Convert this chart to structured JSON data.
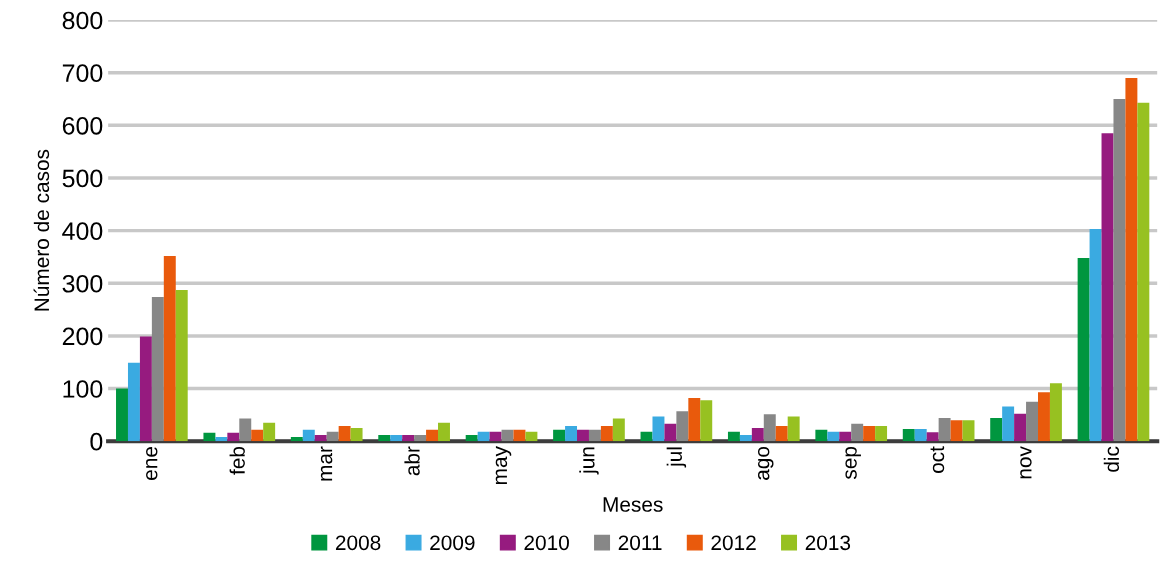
{
  "chart_data": {
    "type": "bar",
    "xlabel": "Meses",
    "ylabel": "Número de casos",
    "categories": [
      "ene",
      "feb",
      "mar",
      "abr",
      "may",
      "jun",
      "jul",
      "ago",
      "sep",
      "oct",
      "nov",
      "dic"
    ],
    "series": [
      {
        "name": "2008",
        "color": "#00963f",
        "values": [
          100,
          16,
          8,
          12,
          12,
          22,
          18,
          18,
          22,
          23,
          44,
          348
        ]
      },
      {
        "name": "2009",
        "color": "#3aaae1",
        "values": [
          149,
          8,
          22,
          12,
          18,
          29,
          47,
          12,
          18,
          23,
          66,
          403
        ]
      },
      {
        "name": "2010",
        "color": "#961b7f",
        "values": [
          199,
          16,
          12,
          12,
          18,
          22,
          33,
          25,
          18,
          17,
          52,
          585
        ]
      },
      {
        "name": "2011",
        "color": "#878787",
        "values": [
          274,
          43,
          18,
          12,
          22,
          22,
          57,
          51,
          33,
          44,
          75,
          650
        ]
      },
      {
        "name": "2012",
        "color": "#e95a0c",
        "values": [
          352,
          22,
          29,
          22,
          22,
          29,
          82,
          29,
          29,
          40,
          93,
          690
        ]
      },
      {
        "name": "2013",
        "color": "#97c121",
        "values": [
          287,
          35,
          25,
          35,
          18,
          43,
          78,
          47,
          29,
          40,
          110,
          643
        ]
      }
    ],
    "ylim": [
      0,
      800
    ],
    "yticks": [
      0,
      100,
      200,
      300,
      400,
      500,
      600,
      700,
      800
    ],
    "grid": "y",
    "legend": "bottom"
  }
}
